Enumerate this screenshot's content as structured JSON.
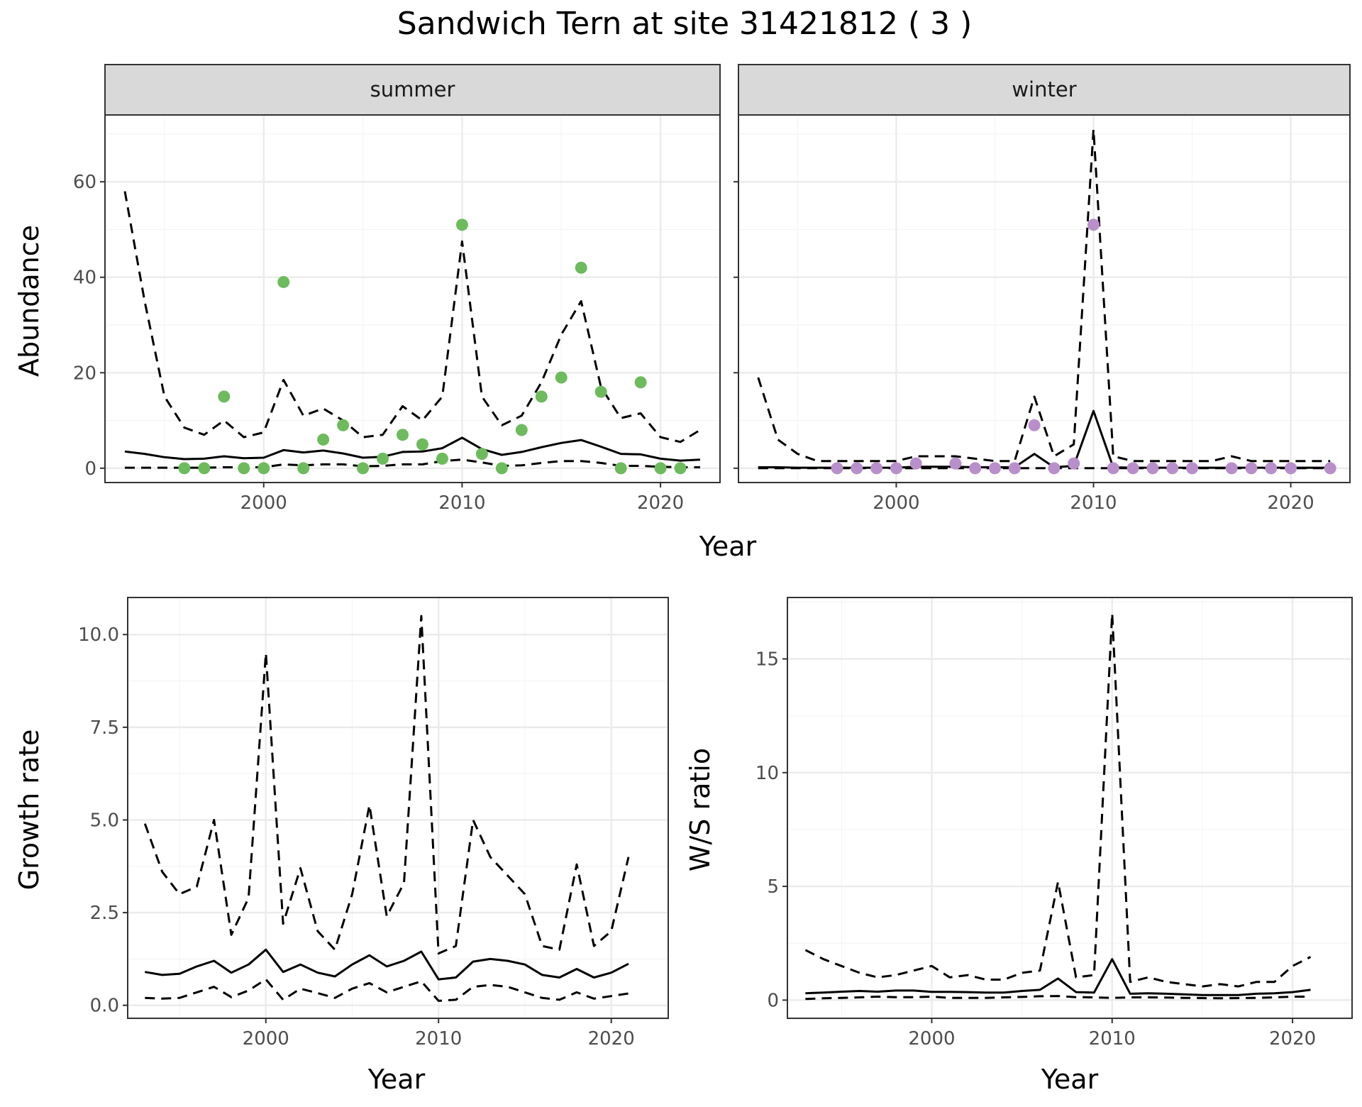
{
  "title": "Sandwich Tern at site 31421812 ( 3 )",
  "colors": {
    "summer_points": "#6dbb5d",
    "winter_points": "#b98fcb",
    "line": "#000000",
    "grid_major": "#ebebeb",
    "grid_minor": "#f4f4f4",
    "strip_fill": "#d9d9d9",
    "panel_border": "#333333"
  },
  "chart_data": [
    {
      "type": "line",
      "panel": "abundance",
      "facets": [
        "summer",
        "winter"
      ],
      "xlabel": "Year",
      "ylabel": "Abundance",
      "xlim": [
        1992,
        2023
      ],
      "ylim": [
        -3,
        74
      ],
      "x_ticks": [
        "2000",
        "2010",
        "2020"
      ],
      "y_ticks": [
        "0",
        "20",
        "40",
        "60"
      ],
      "grid": true,
      "summer": {
        "years": [
          1993,
          1994,
          1995,
          1996,
          1997,
          1998,
          1999,
          2000,
          2001,
          2002,
          2003,
          2004,
          2005,
          2006,
          2007,
          2008,
          2009,
          2010,
          2011,
          2012,
          2013,
          2014,
          2015,
          2016,
          2017,
          2018,
          2019,
          2020,
          2021,
          2022
        ],
        "estimate": [
          3.5,
          3.0,
          2.3,
          1.9,
          2.0,
          2.5,
          2.1,
          2.2,
          3.8,
          3.3,
          3.7,
          3.1,
          2.2,
          2.4,
          3.4,
          3.5,
          4.2,
          6.4,
          4.0,
          2.8,
          3.4,
          4.4,
          5.3,
          5.9,
          4.5,
          3.0,
          2.9,
          2.0,
          1.6,
          1.8
        ],
        "upper": [
          58,
          35,
          15,
          8.5,
          7,
          10,
          6.5,
          7.5,
          18.5,
          11,
          12.5,
          10,
          6.5,
          7,
          13,
          10,
          15,
          47.5,
          15,
          9,
          11,
          18,
          28,
          35,
          17,
          10.5,
          11.5,
          6.5,
          5.5,
          8
        ],
        "lower": [
          0.1,
          0.1,
          0.1,
          0.1,
          0.1,
          0.2,
          0.2,
          0.2,
          0.8,
          0.6,
          0.8,
          0.8,
          0.4,
          0.5,
          0.8,
          0.8,
          1.5,
          1.8,
          1.2,
          0.5,
          0.6,
          1.1,
          1.5,
          1.5,
          1.1,
          0.5,
          0.5,
          0.3,
          0.2,
          0.2
        ],
        "obs_years": [
          1996,
          1997,
          1998,
          1999,
          2000,
          2001,
          2002,
          2003,
          2004,
          2005,
          2006,
          2007,
          2008,
          2009,
          2010,
          2011,
          2012,
          2013,
          2014,
          2015,
          2016,
          2017,
          2018,
          2019,
          2020,
          2021
        ],
        "observed": [
          0,
          0,
          15,
          0,
          0,
          39,
          0,
          6,
          9,
          0,
          2,
          7,
          5,
          2,
          51,
          3,
          0,
          8,
          15,
          19,
          42,
          16,
          0,
          18,
          0,
          0
        ]
      },
      "winter": {
        "years": [
          1993,
          1994,
          1995,
          1996,
          1997,
          1998,
          1999,
          2000,
          2001,
          2002,
          2003,
          2004,
          2005,
          2006,
          2007,
          2008,
          2009,
          2010,
          2011,
          2012,
          2013,
          2014,
          2015,
          2016,
          2017,
          2018,
          2019,
          2020,
          2021,
          2022
        ],
        "estimate": [
          0.2,
          0.2,
          0.1,
          0.1,
          0.1,
          0.1,
          0.1,
          0.1,
          0.3,
          0.3,
          0.3,
          0.2,
          0.2,
          0.2,
          3,
          0.2,
          0.5,
          12,
          0.2,
          0.1,
          0.1,
          0.1,
          0.1,
          0.1,
          0.1,
          0.1,
          0.1,
          0.1,
          0.1,
          0.1
        ],
        "upper": [
          19,
          6,
          3,
          1.5,
          1.5,
          1.5,
          1.5,
          1.5,
          2.5,
          2.5,
          2.5,
          2,
          1.5,
          1.5,
          15,
          2.5,
          5,
          71,
          2.5,
          1.5,
          1.5,
          1.5,
          1.5,
          1.5,
          2.5,
          1.5,
          1.5,
          1.5,
          1.5,
          1.5
        ],
        "lower": [
          0,
          0,
          0,
          0,
          0,
          0,
          0,
          0,
          0,
          0,
          0,
          0,
          0,
          0,
          0,
          0,
          0,
          0,
          0,
          0,
          0,
          0,
          0,
          0,
          0,
          0,
          0,
          0,
          0,
          0
        ],
        "obs_years": [
          1997,
          1998,
          1999,
          2000,
          2001,
          2003,
          2004,
          2005,
          2006,
          2007,
          2008,
          2009,
          2010,
          2011,
          2012,
          2013,
          2014,
          2015,
          2017,
          2018,
          2019,
          2020,
          2022
        ],
        "observed": [
          0,
          0,
          0,
          0,
          1,
          1,
          0,
          0,
          0,
          9,
          0,
          1,
          51,
          0,
          0,
          0,
          0,
          0,
          0,
          0,
          0,
          0,
          0
        ]
      }
    },
    {
      "type": "line",
      "panel": "growth",
      "xlabel": "Year",
      "ylabel": "Growth rate",
      "xlim": [
        1992,
        2023.3
      ],
      "ylim": [
        -0.35,
        11.0
      ],
      "x_ticks": [
        "2000",
        "2010",
        "2020"
      ],
      "y_ticks": [
        "0.0",
        "2.5",
        "5.0",
        "7.5",
        "10.0"
      ],
      "grid": true,
      "years": [
        1993,
        1994,
        1995,
        1996,
        1997,
        1998,
        1999,
        2000,
        2001,
        2002,
        2003,
        2004,
        2005,
        2006,
        2007,
        2008,
        2009,
        2010,
        2011,
        2012,
        2013,
        2014,
        2015,
        2016,
        2017,
        2018,
        2019,
        2020,
        2021
      ],
      "estimate": [
        0.9,
        0.82,
        0.85,
        1.05,
        1.2,
        0.88,
        1.1,
        1.5,
        0.9,
        1.1,
        0.88,
        0.78,
        1.1,
        1.35,
        1.05,
        1.2,
        1.45,
        0.7,
        0.75,
        1.18,
        1.25,
        1.2,
        1.1,
        0.82,
        0.75,
        0.98,
        0.75,
        0.88,
        1.12
      ],
      "upper": [
        4.9,
        3.6,
        3.0,
        3.2,
        5.0,
        1.9,
        2.9,
        9.5,
        2.2,
        3.7,
        2.0,
        1.5,
        3.0,
        5.4,
        2.4,
        3.3,
        10.5,
        1.4,
        1.6,
        5.0,
        4.0,
        3.5,
        3.0,
        1.6,
        1.5,
        3.8,
        1.6,
        2.0,
        4.0
      ],
      "lower": [
        0.2,
        0.18,
        0.2,
        0.35,
        0.5,
        0.22,
        0.4,
        0.7,
        0.15,
        0.45,
        0.33,
        0.2,
        0.45,
        0.6,
        0.35,
        0.5,
        0.65,
        0.12,
        0.15,
        0.5,
        0.55,
        0.5,
        0.35,
        0.2,
        0.15,
        0.35,
        0.18,
        0.25,
        0.32
      ]
    },
    {
      "type": "line",
      "panel": "ws_ratio",
      "xlabel": "Year",
      "ylabel": "W/S ratio",
      "xlim": [
        1992,
        2023.3
      ],
      "ylim": [
        -0.8,
        17.7
      ],
      "x_ticks": [
        "2000",
        "2010",
        "2020"
      ],
      "y_ticks": [
        "0",
        "5",
        "10",
        "15"
      ],
      "grid": true,
      "years": [
        1993,
        1994,
        1995,
        1996,
        1997,
        1998,
        1999,
        2000,
        2001,
        2002,
        2003,
        2004,
        2005,
        2006,
        2007,
        2008,
        2009,
        2010,
        2011,
        2012,
        2013,
        2014,
        2015,
        2016,
        2017,
        2018,
        2019,
        2020,
        2021
      ],
      "estimate": [
        0.3,
        0.33,
        0.37,
        0.4,
        0.37,
        0.42,
        0.42,
        0.36,
        0.36,
        0.35,
        0.33,
        0.33,
        0.4,
        0.45,
        0.95,
        0.35,
        0.33,
        1.8,
        0.28,
        0.3,
        0.28,
        0.25,
        0.22,
        0.22,
        0.22,
        0.28,
        0.3,
        0.35,
        0.45
      ],
      "upper": [
        2.2,
        1.8,
        1.5,
        1.2,
        1.0,
        1.1,
        1.3,
        1.5,
        1.0,
        1.1,
        0.9,
        0.9,
        1.2,
        1.3,
        5.2,
        1.0,
        1.1,
        17,
        0.8,
        1.0,
        0.8,
        0.7,
        0.6,
        0.7,
        0.6,
        0.8,
        0.8,
        1.5,
        1.9
      ],
      "lower": [
        0.05,
        0.08,
        0.1,
        0.12,
        0.15,
        0.13,
        0.13,
        0.15,
        0.1,
        0.1,
        0.1,
        0.12,
        0.14,
        0.17,
        0.18,
        0.13,
        0.12,
        0.1,
        0.12,
        0.12,
        0.11,
        0.1,
        0.09,
        0.08,
        0.09,
        0.1,
        0.12,
        0.15,
        0.15
      ]
    }
  ]
}
